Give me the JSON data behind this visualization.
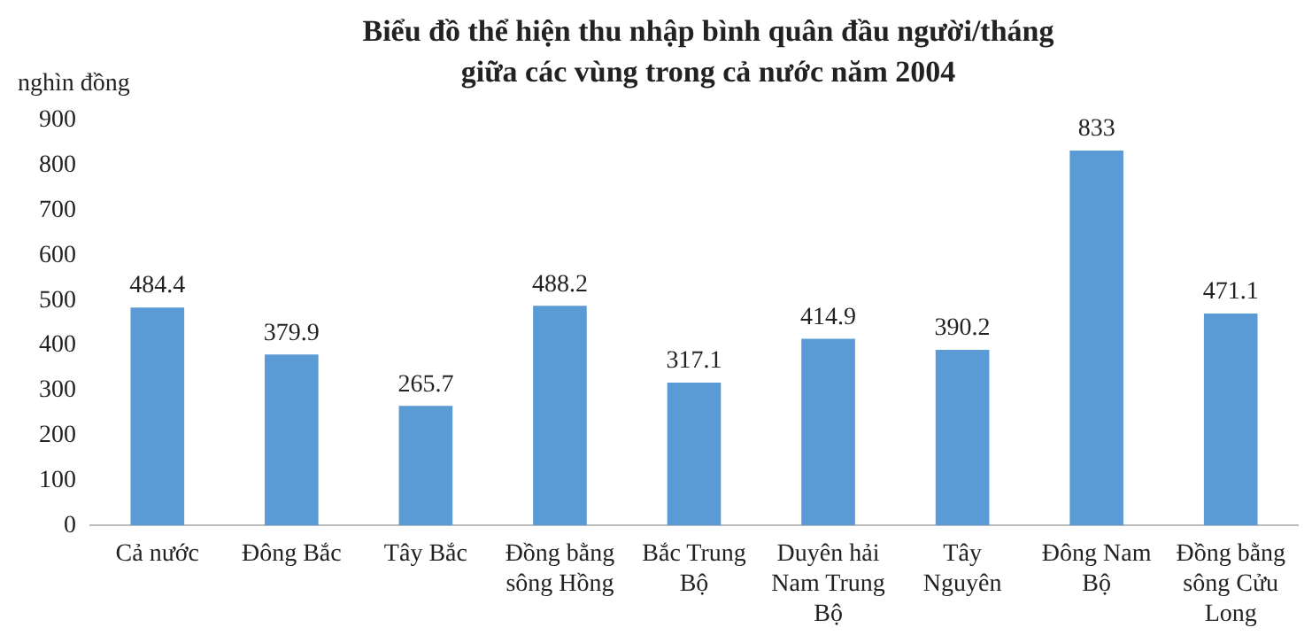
{
  "chart_data": {
    "type": "bar",
    "title": "Biểu đồ thể hiện thu nhập bình quân đầu người/tháng giữa các vùng trong cả nước năm 2004",
    "ylabel": "nghìn đồng",
    "categories": [
      "Cả nước",
      "Đông Bắc",
      "Tây Bắc",
      "Đồng bằng sông Hồng",
      "Bắc Trung Bộ",
      "Duyên hải Nam Trung Bộ",
      "Tây Nguyên",
      "Đông Nam Bộ",
      "Đồng bằng sông Cửu Long"
    ],
    "values": [
      484.4,
      379.9,
      265.7,
      488.2,
      317.1,
      414.9,
      390.2,
      833,
      471.1
    ],
    "color": "#5b9bd5",
    "ylim": [
      0,
      900
    ],
    "yticks": [
      0,
      100,
      200,
      300,
      400,
      500,
      600,
      700,
      800,
      900
    ],
    "grid": false,
    "data_labels": true,
    "legend": false
  }
}
